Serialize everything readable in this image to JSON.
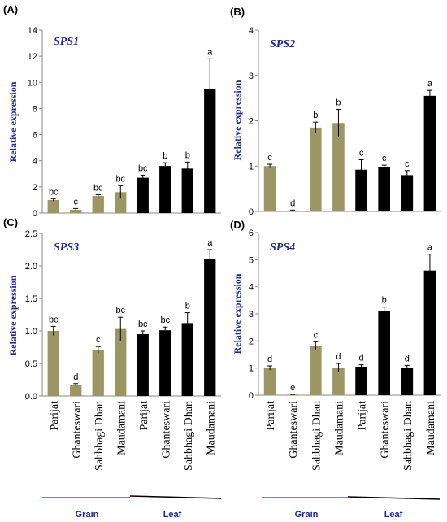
{
  "chart_data": [
    {
      "type": "bar",
      "panel": "(A)",
      "title": "SPS1",
      "ylabel": "Relative expression",
      "ylim": [
        0,
        14
      ],
      "yticks": [
        0,
        2,
        4,
        6,
        8,
        10,
        12,
        14
      ],
      "categories": [
        "Parijat",
        "Ghanteswari",
        "Sahbhagi Dhan",
        "Maudamani",
        "Parijat",
        "Ghanteswari",
        "Sahbhagi Dhan",
        "Maudamani"
      ],
      "values": [
        1.0,
        0.25,
        1.3,
        1.6,
        2.7,
        3.6,
        3.4,
        9.5
      ],
      "errors": [
        0.1,
        0.1,
        0.1,
        0.5,
        0.2,
        0.25,
        0.5,
        2.3
      ],
      "labels": [
        "bc",
        "c",
        "bc",
        "bc",
        "bc",
        "b",
        "b",
        "a"
      ],
      "colors": [
        "#9c9564",
        "#9c9564",
        "#9c9564",
        "#9c9564",
        "#000000",
        "#000000",
        "#000000",
        "#000000"
      ]
    },
    {
      "type": "bar",
      "panel": "(B)",
      "title": "SPS2",
      "ylabel": "Relative expression",
      "ylim": [
        0,
        4
      ],
      "yticks": [
        0,
        1,
        2,
        3,
        4
      ],
      "categories": [
        "Parijat",
        "Ghanteswari",
        "Sahbhagi Dhan",
        "Maudamani",
        "Parijat",
        "Ghanteswari",
        "Sahbhagi Dhan",
        "Maudamani"
      ],
      "values": [
        1.0,
        0.02,
        1.85,
        1.95,
        0.92,
        0.97,
        0.8,
        2.55
      ],
      "errors": [
        0.04,
        0.01,
        0.12,
        0.3,
        0.22,
        0.05,
        0.1,
        0.12
      ],
      "labels": [
        "c",
        "d",
        "b",
        "b",
        "c",
        "c",
        "c",
        "a"
      ],
      "colors": [
        "#9c9564",
        "#9c9564",
        "#9c9564",
        "#9c9564",
        "#000000",
        "#000000",
        "#000000",
        "#000000"
      ]
    },
    {
      "type": "bar",
      "panel": "(C)",
      "title": "SPS3",
      "ylabel": "Relative expression",
      "ylim": [
        0,
        2.5
      ],
      "yticks": [
        "0.0",
        "0.5",
        "1.0",
        "1.5",
        "2.0",
        "2.5"
      ],
      "categories": [
        "Parijat",
        "Ghanteswari",
        "Sahbhagi Dhan",
        "Maudamani",
        "Parijat",
        "Ghanteswari",
        "Sahbhagi Dhan",
        "Maudamani"
      ],
      "values": [
        1.0,
        0.17,
        0.71,
        1.03,
        0.95,
        1.01,
        1.12,
        2.1
      ],
      "errors": [
        0.07,
        0.02,
        0.05,
        0.18,
        0.05,
        0.05,
        0.16,
        0.15
      ],
      "labels": [
        "bc",
        "d",
        "c",
        "bc",
        "bc",
        "bc",
        "b",
        "a"
      ],
      "colors": [
        "#9c9564",
        "#9c9564",
        "#9c9564",
        "#9c9564",
        "#000000",
        "#000000",
        "#000000",
        "#000000"
      ]
    },
    {
      "type": "bar",
      "panel": "(D)",
      "title": "SPS4",
      "ylabel": "Relative expression",
      "ylim": [
        0,
        6
      ],
      "yticks": [
        0,
        1,
        2,
        3,
        4,
        5,
        6
      ],
      "categories": [
        "Parijat",
        "Ghanteswari",
        "Sahbhagi Dhan",
        "Maudamani",
        "Parijat",
        "Ghanteswari",
        "Sahbhagi Dhan",
        "Maudamani"
      ],
      "values": [
        1.0,
        0.02,
        1.82,
        1.02,
        1.05,
        3.1,
        1.0,
        4.6
      ],
      "errors": [
        0.08,
        0.01,
        0.15,
        0.15,
        0.07,
        0.15,
        0.1,
        0.6
      ],
      "labels": [
        "d",
        "e",
        "c",
        "d",
        "d",
        "b",
        "d",
        "a"
      ],
      "colors": [
        "#9c9564",
        "#9c9564",
        "#9c9564",
        "#9c9564",
        "#000000",
        "#000000",
        "#000000",
        "#000000"
      ]
    }
  ],
  "groups": [
    {
      "label": "Grain",
      "color": "#e8202a"
    },
    {
      "label": "Leaf",
      "color": "#000000"
    }
  ]
}
